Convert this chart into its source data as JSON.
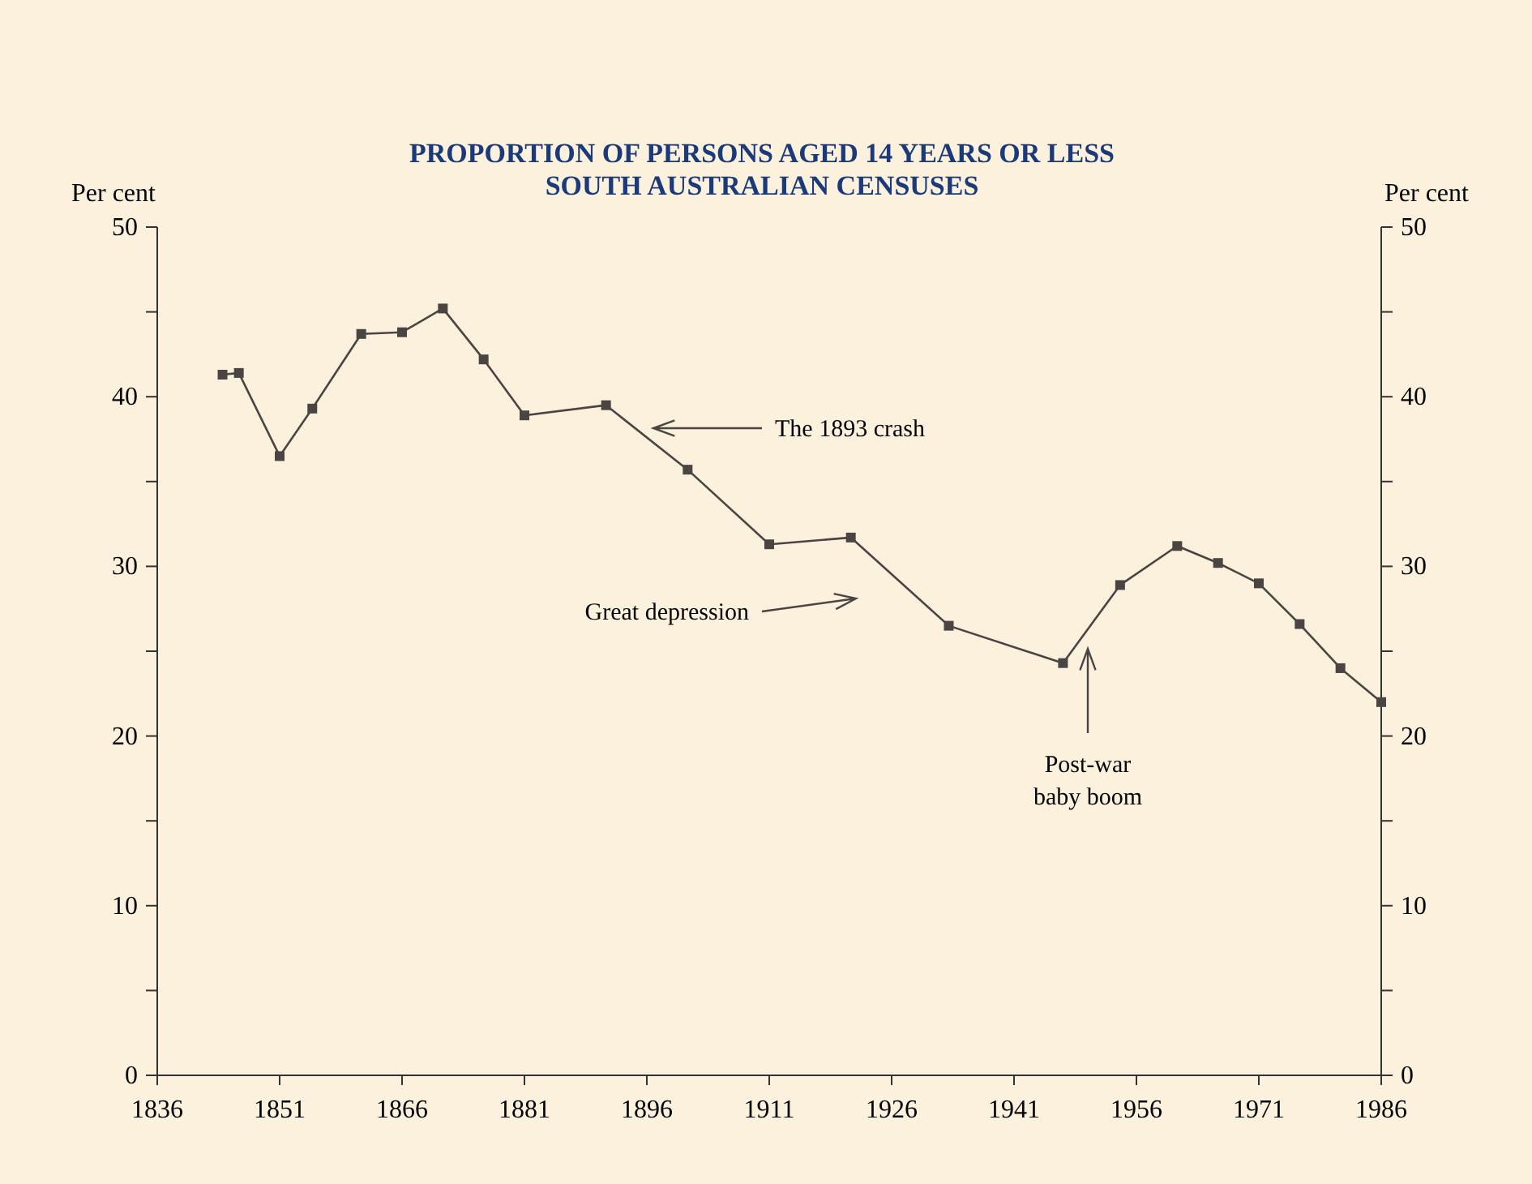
{
  "chart_data": {
    "type": "line",
    "title": "PROPORTION OF PERSONS AGED 14 YEARS OR LESS\nSOUTH AUSTRALIAN CENSUSES",
    "ylabel": "Per cent",
    "y2label": "Per cent",
    "x": [
      1844,
      1846,
      1851,
      1855,
      1861,
      1866,
      1871,
      1876,
      1881,
      1891,
      1901,
      1911,
      1921,
      1933,
      1947,
      1954,
      1961,
      1966,
      1971,
      1976,
      1981,
      1986
    ],
    "series": [
      {
        "color": "#4a4542",
        "values": [
          41.3,
          41.4,
          36.5,
          39.3,
          43.7,
          43.8,
          45.2,
          42.2,
          38.9,
          39.5,
          35.7,
          31.3,
          31.7,
          26.5,
          24.3,
          28.9,
          31.2,
          30.2,
          29.0,
          26.6,
          24.0,
          22.0
        ]
      }
    ],
    "xlim": [
      1836,
      1986
    ],
    "xticks": [
      1836,
      1851,
      1866,
      1881,
      1896,
      1911,
      1926,
      1941,
      1956,
      1971,
      1986
    ],
    "ylim": [
      0,
      50
    ],
    "yticks": [
      0,
      {
        "value": 5,
        "label": null
      },
      10,
      {
        "value": 15,
        "label": null
      },
      20,
      {
        "value": 25,
        "label": null
      },
      30,
      {
        "value": 35,
        "label": null
      },
      40,
      {
        "value": 45,
        "label": null
      },
      50
    ],
    "y2lim": [
      0,
      50
    ],
    "y2ticks": [
      0,
      {
        "value": 5,
        "label": null
      },
      10,
      {
        "value": 15,
        "label": null
      },
      20,
      {
        "value": 25,
        "label": null
      },
      30,
      {
        "value": 35,
        "label": null
      },
      40,
      {
        "value": 45,
        "label": null
      },
      50
    ],
    "annotations": [
      "The 1893 crash",
      "Great depression",
      "Post-war baby boom"
    ],
    "marker": "square",
    "line_style": "solid",
    "grid": false
  }
}
